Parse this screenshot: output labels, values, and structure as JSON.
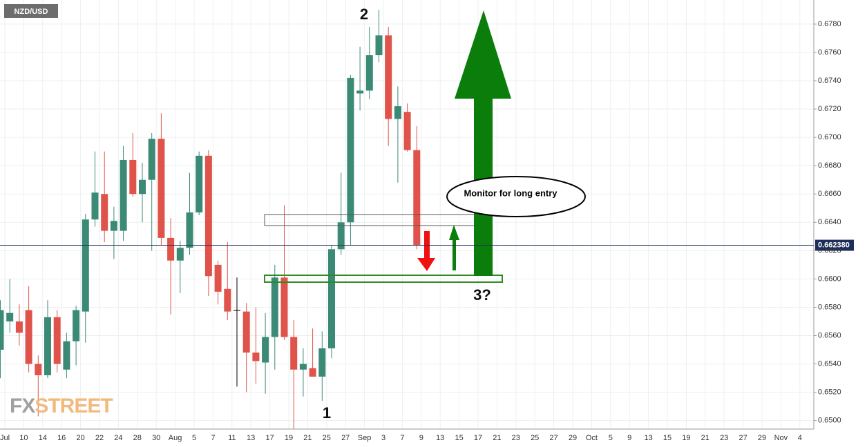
{
  "chart_data": {
    "type": "candlestick",
    "symbol": "NZD/USD",
    "logo": [
      "FX",
      "STREET"
    ],
    "x_labels": [
      "Jul",
      "10",
      "14",
      "16",
      "20",
      "22",
      "24",
      "28",
      "30",
      "Aug",
      "5",
      "7",
      "11",
      "13",
      "17",
      "19",
      "21",
      "25",
      "27",
      "Sep",
      "3",
      "7",
      "9",
      "13",
      "15",
      "17",
      "21",
      "23",
      "25",
      "27",
      "29",
      "Oct",
      "5",
      "9",
      "13",
      "15",
      "19",
      "21",
      "23",
      "27",
      "29",
      "Nov",
      "4"
    ],
    "open": [
      0.655,
      0.657,
      0.657,
      0.6578,
      0.654,
      0.6532,
      0.6573,
      0.6536,
      0.6556,
      0.6577,
      0.6642,
      0.666,
      0.6634,
      0.6634,
      0.6684,
      0.666,
      0.667,
      0.6699,
      0.6629,
      0.6613,
      0.6622,
      0.6647,
      0.6687,
      0.661,
      0.6593,
      0.6578,
      0.6577,
      0.6548,
      0.6541,
      0.6559,
      0.6601,
      0.6559,
      0.6536,
      0.6537,
      0.6531,
      0.6551,
      0.6621,
      0.664,
      0.6731,
      0.6733,
      0.6758,
      0.6772,
      0.6713,
      0.6718,
      0.6691
    ],
    "high": [
      0.6585,
      0.66,
      0.6582,
      0.6595,
      0.6546,
      0.6585,
      0.6578,
      0.6562,
      0.6581,
      0.6646,
      0.669,
      0.669,
      0.6651,
      0.6694,
      0.6703,
      0.6682,
      0.6703,
      0.6717,
      0.6643,
      0.6627,
      0.6675,
      0.669,
      0.6691,
      0.6613,
      0.6626,
      0.6601,
      0.6583,
      0.658,
      0.6576,
      0.661,
      0.6652,
      0.6571,
      0.6551,
      0.6565,
      0.6563,
      0.6624,
      0.6675,
      0.6744,
      0.6764,
      0.6778,
      0.679,
      0.6778,
      0.6736,
      0.6724,
      0.6708
    ],
    "low": [
      0.653,
      0.6562,
      0.6553,
      0.6534,
      0.6503,
      0.653,
      0.6534,
      0.653,
      0.6539,
      0.6555,
      0.6637,
      0.6626,
      0.6614,
      0.6627,
      0.6658,
      0.664,
      0.662,
      0.6624,
      0.6575,
      0.659,
      0.6617,
      0.6645,
      0.6588,
      0.6582,
      0.6571,
      0.6524,
      0.652,
      0.6526,
      0.6519,
      0.6536,
      0.6557,
      0.6494,
      0.6517,
      0.6531,
      0.6514,
      0.6544,
      0.6617,
      0.6624,
      0.6719,
      0.6727,
      0.6753,
      0.6694,
      0.6668,
      0.669,
      0.6621
    ],
    "close": [
      0.6578,
      0.6576,
      0.6562,
      0.654,
      0.6532,
      0.6573,
      0.654,
      0.6556,
      0.6578,
      0.6642,
      0.6661,
      0.6634,
      0.6641,
      0.6684,
      0.666,
      0.667,
      0.6699,
      0.6629,
      0.6613,
      0.6622,
      0.6647,
      0.6687,
      0.6602,
      0.6591,
      0.6577,
      0.6578,
      0.6548,
      0.6542,
      0.6559,
      0.6601,
      0.6559,
      0.6536,
      0.654,
      0.6531,
      0.6551,
      0.6621,
      0.664,
      0.6742,
      0.6733,
      0.6758,
      0.6772,
      0.6713,
      0.6722,
      0.6691,
      0.6624
    ],
    "up_color": "#3b8a76",
    "down_color": "#e0534a",
    "neutral_color": "#000000",
    "ylim": [
      0.6494,
      0.6797
    ],
    "yticks": [
      {
        "value": 0.65,
        "label": "0.6500"
      },
      {
        "value": 0.652,
        "label": "0.6520"
      },
      {
        "value": 0.654,
        "label": "0.6540"
      },
      {
        "value": 0.656,
        "label": "0.6560"
      },
      {
        "value": 0.658,
        "label": "0.6580"
      },
      {
        "value": 0.66,
        "label": "0.6600"
      },
      {
        "value": 0.662,
        "label": "0.6620"
      },
      {
        "value": 0.664,
        "label": "0.6640"
      },
      {
        "value": 0.666,
        "label": "0.6660"
      },
      {
        "value": 0.668,
        "label": "0.6680"
      },
      {
        "value": 0.67,
        "label": "0.6700"
      },
      {
        "value": 0.672,
        "label": "0.6720"
      },
      {
        "value": 0.674,
        "label": "0.6740"
      },
      {
        "value": 0.676,
        "label": "0.6760"
      },
      {
        "value": 0.678,
        "label": "0.6780"
      }
    ],
    "last_price": {
      "value": 0.66238,
      "label": "0.662380"
    },
    "grid": true,
    "annotations": [
      "2",
      "1",
      "3?",
      "Monitor for long entry"
    ]
  }
}
